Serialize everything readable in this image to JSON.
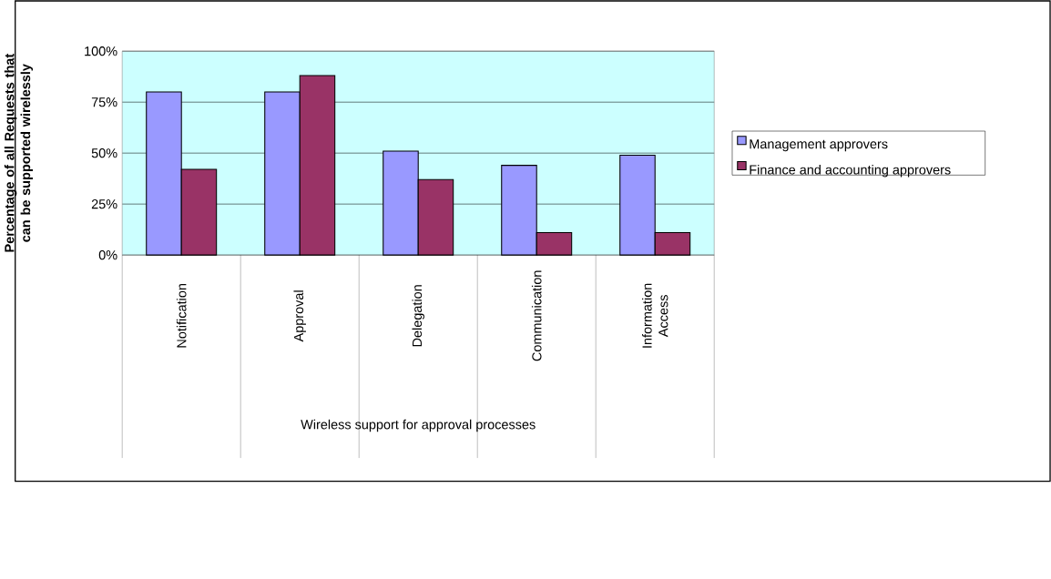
{
  "chart_data": {
    "type": "bar",
    "xlabel": "Wireless support for approval processes",
    "ylabel": "Percentage of all Requests that can be supported wirelessly",
    "categories": [
      "Notification",
      "Approval",
      "Delegation",
      "Communication",
      "Information Access"
    ],
    "series": [
      {
        "name": "Management approvers",
        "color": "#9999ff",
        "values": [
          80,
          80,
          51,
          44,
          49
        ]
      },
      {
        "name": "Finance and accounting approvers",
        "color": "#993366",
        "values": [
          42,
          88,
          37,
          11,
          11
        ]
      }
    ],
    "ylim": [
      0,
      100
    ],
    "yticks": [
      {
        "value": 0,
        "label": "0%"
      },
      {
        "value": 25,
        "label": "25%"
      },
      {
        "value": 50,
        "label": "50%"
      },
      {
        "value": 75,
        "label": "75%"
      },
      {
        "value": 100,
        "label": "100%"
      }
    ],
    "grid": "y",
    "legend": "right"
  }
}
